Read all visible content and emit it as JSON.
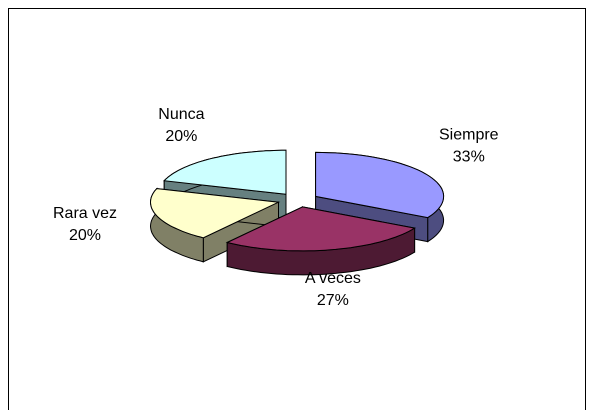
{
  "chart_data": {
    "type": "pie",
    "categories": [
      "Siempre",
      "A veces",
      "Rara vez",
      "Nunca"
    ],
    "values": [
      33,
      27,
      20,
      20
    ],
    "value_labels": [
      "33%",
      "27%",
      "20%",
      "20%"
    ],
    "colors": [
      "#9999ff",
      "#993366",
      "#ffffcc",
      "#ccffff"
    ],
    "exploded": true,
    "three_d": true
  }
}
